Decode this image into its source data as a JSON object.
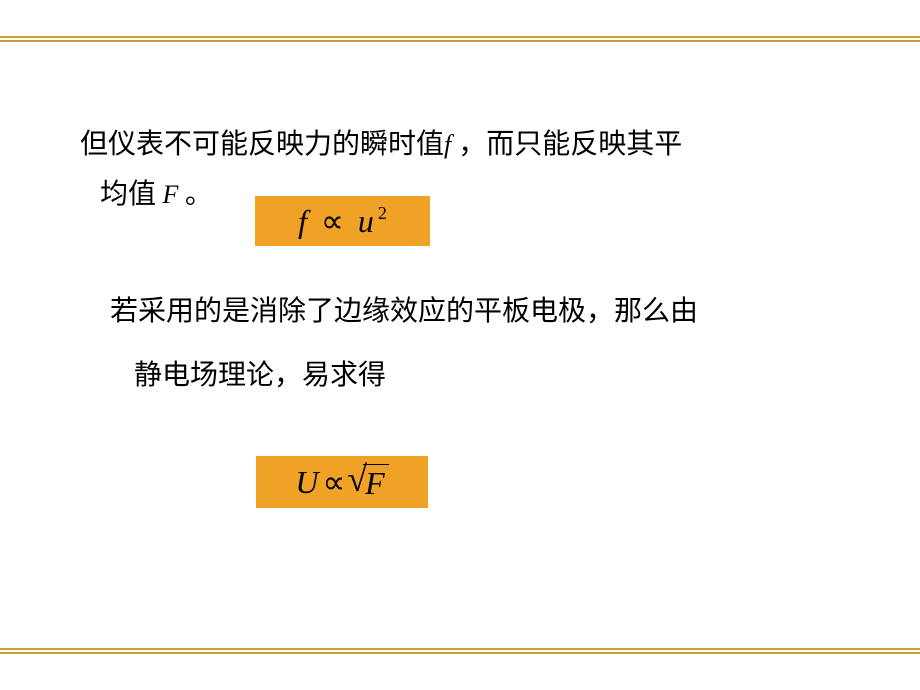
{
  "slide": {
    "border_color": "#c9a038",
    "background_color": "#ffffff",
    "text_color": "#000000",
    "body_font_size": 28,
    "formula_bg_color": "#efa225"
  },
  "paragraphs": {
    "p1_part1": "但仪表不可能反映力的瞬时值",
    "p1_var1": "f",
    "p1_part2": " ，而只能反映其平",
    "p1_part3": "均值",
    "p1_var2": " F ",
    "p1_part4": "。",
    "p2_line1": "若采用的是消除了边缘效应的平板电极，那么由",
    "p2_line2": "静电场理论，易求得"
  },
  "formulas": {
    "f1": {
      "lhs": "f",
      "operator": "∝",
      "rhs_base": "u",
      "rhs_exponent": "2",
      "bg_color": "#efa225",
      "font_family": "Times New Roman",
      "font_style": "italic",
      "font_size": 32
    },
    "f2": {
      "lhs": "U",
      "operator": "∝",
      "sqrt_symbol": "√",
      "sqrt_content": "F",
      "bg_color": "#efa225",
      "font_family": "Times New Roman",
      "font_style": "italic",
      "font_size": 32
    }
  }
}
